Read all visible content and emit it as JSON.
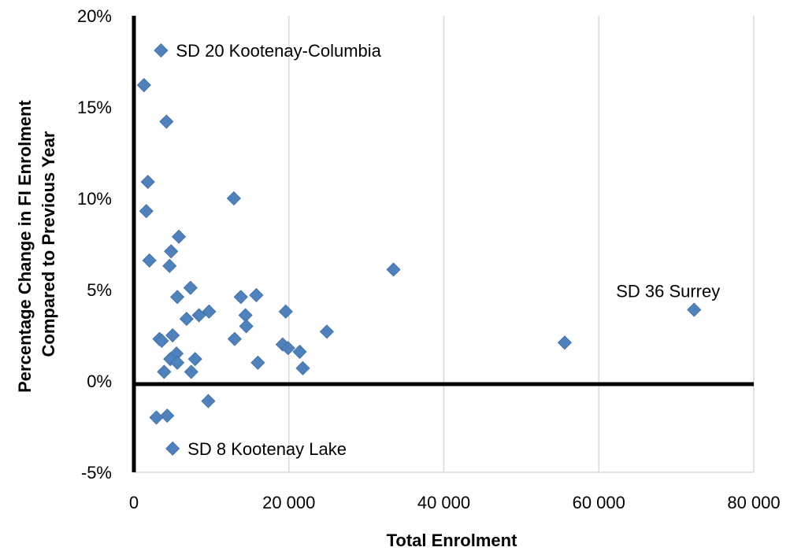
{
  "chart_data": {
    "type": "scatter",
    "title": "",
    "xlabel": "Total Enrolment",
    "ylabel_lines": [
      "Percentage Change in FI Enrolment",
      "Compared to Previous Year"
    ],
    "xlim": [
      0,
      80000
    ],
    "ylim": [
      -0.05,
      0.2
    ],
    "x_ticks": [
      0,
      20000,
      40000,
      60000,
      80000
    ],
    "x_tick_labels": [
      "0",
      "20 000",
      "40 000",
      "60 000",
      "80 000"
    ],
    "y_ticks": [
      -0.05,
      0,
      0.05,
      0.1,
      0.15,
      0.2
    ],
    "y_tick_labels": [
      "-5%",
      "0%",
      "5%",
      "10%",
      "15%",
      "20%"
    ],
    "grid": "vertical",
    "legend": "none",
    "marker": "diamond",
    "marker_color": "#4F81BD",
    "points": [
      {
        "x": 3500,
        "y": 0.181
      },
      {
        "x": 1300,
        "y": 0.162
      },
      {
        "x": 4200,
        "y": 0.142
      },
      {
        "x": 1800,
        "y": 0.109
      },
      {
        "x": 1600,
        "y": 0.093
      },
      {
        "x": 12900,
        "y": 0.1
      },
      {
        "x": 5800,
        "y": 0.079
      },
      {
        "x": 4800,
        "y": 0.071
      },
      {
        "x": 2000,
        "y": 0.066
      },
      {
        "x": 4600,
        "y": 0.063
      },
      {
        "x": 33500,
        "y": 0.061
      },
      {
        "x": 7300,
        "y": 0.051
      },
      {
        "x": 5600,
        "y": 0.046
      },
      {
        "x": 13800,
        "y": 0.046
      },
      {
        "x": 15800,
        "y": 0.047
      },
      {
        "x": 72300,
        "y": 0.039
      },
      {
        "x": 9700,
        "y": 0.038
      },
      {
        "x": 19600,
        "y": 0.038
      },
      {
        "x": 8400,
        "y": 0.036
      },
      {
        "x": 14400,
        "y": 0.036
      },
      {
        "x": 6800,
        "y": 0.034
      },
      {
        "x": 14500,
        "y": 0.03
      },
      {
        "x": 24900,
        "y": 0.027
      },
      {
        "x": 5000,
        "y": 0.025
      },
      {
        "x": 3300,
        "y": 0.023
      },
      {
        "x": 3600,
        "y": 0.022
      },
      {
        "x": 13000,
        "y": 0.023
      },
      {
        "x": 55600,
        "y": 0.021
      },
      {
        "x": 19200,
        "y": 0.02
      },
      {
        "x": 19900,
        "y": 0.018
      },
      {
        "x": 21400,
        "y": 0.016
      },
      {
        "x": 5500,
        "y": 0.015
      },
      {
        "x": 4700,
        "y": 0.012
      },
      {
        "x": 7900,
        "y": 0.012
      },
      {
        "x": 5600,
        "y": 0.01
      },
      {
        "x": 16000,
        "y": 0.01
      },
      {
        "x": 21800,
        "y": 0.007
      },
      {
        "x": 3900,
        "y": 0.005
      },
      {
        "x": 7400,
        "y": 0.005
      },
      {
        "x": 9600,
        "y": -0.011
      },
      {
        "x": 4300,
        "y": -0.019
      },
      {
        "x": 2900,
        "y": -0.02
      },
      {
        "x": 5000,
        "y": -0.037
      }
    ],
    "annotations": [
      {
        "text": "SD 20 Kootenay-Columbia",
        "x": 3500,
        "y": 0.181
      },
      {
        "text": "SD 36 Surrey",
        "x": 72300,
        "y": 0.039
      },
      {
        "text": "SD 8 Kootenay Lake",
        "x": 5000,
        "y": -0.037
      }
    ]
  }
}
